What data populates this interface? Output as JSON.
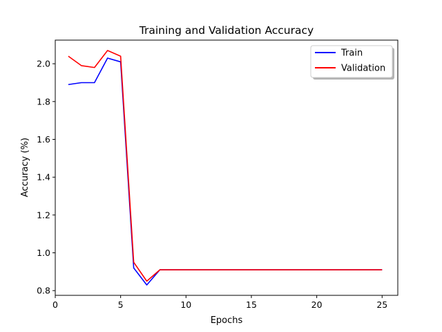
{
  "chart_data": {
    "type": "line",
    "title": "Training and Validation Accuracy",
    "xlabel": "Epochs",
    "ylabel": "Accuracy (%)",
    "xlim": [
      0,
      26.2
    ],
    "ylim": [
      0.775,
      2.125
    ],
    "xticks": [
      0,
      5,
      10,
      15,
      20,
      25
    ],
    "yticks": [
      0.8,
      1.0,
      1.2,
      1.4,
      1.6,
      1.8,
      2.0
    ],
    "ytick_labels": [
      "0.8",
      "1.0",
      "1.2",
      "1.4",
      "1.6",
      "1.8",
      "2.0"
    ],
    "grid": false,
    "legend_position": "top-right",
    "x": [
      1,
      2,
      3,
      4,
      5,
      6,
      7,
      8,
      9,
      10,
      11,
      12,
      13,
      14,
      15,
      16,
      17,
      18,
      19,
      20,
      21,
      22,
      23,
      24,
      25
    ],
    "series": [
      {
        "name": "Train",
        "color": "#0000ff",
        "values": [
          1.89,
          1.9,
          1.9,
          2.03,
          2.01,
          0.92,
          0.83,
          0.91,
          0.91,
          0.91,
          0.91,
          0.91,
          0.91,
          0.91,
          0.91,
          0.91,
          0.91,
          0.91,
          0.91,
          0.91,
          0.91,
          0.91,
          0.91,
          0.91,
          0.91
        ]
      },
      {
        "name": "Validation",
        "color": "#ff0000",
        "values": [
          2.04,
          1.99,
          1.98,
          2.07,
          2.04,
          0.95,
          0.85,
          0.91,
          0.91,
          0.91,
          0.91,
          0.91,
          0.91,
          0.91,
          0.91,
          0.91,
          0.91,
          0.91,
          0.91,
          0.91,
          0.91,
          0.91,
          0.91,
          0.91,
          0.91
        ]
      }
    ]
  }
}
